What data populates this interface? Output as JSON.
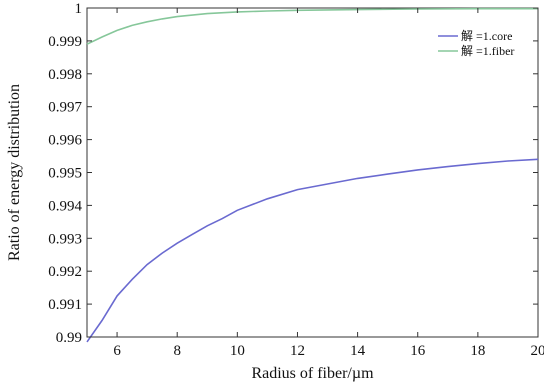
{
  "chart_data": {
    "type": "line",
    "xlabel": "Radius of fiber/µm",
    "ylabel": "Ratio of energy distribution",
    "xlim": [
      5,
      20
    ],
    "ylim": [
      0.99,
      1.0
    ],
    "x_ticks": [
      6,
      8,
      10,
      12,
      14,
      16,
      18,
      20
    ],
    "x_tick_labels": [
      "6",
      "8",
      "10",
      "12",
      "14",
      "16",
      "18",
      "20"
    ],
    "y_ticks": [
      0.99,
      0.991,
      0.992,
      0.993,
      0.994,
      0.995,
      0.996,
      0.997,
      0.998,
      0.999,
      1.0
    ],
    "y_tick_labels": [
      "0.99",
      "0.991",
      "0.992",
      "0.993",
      "0.994",
      "0.995",
      "0.996",
      "0.997",
      "0.998",
      "0.999",
      "1"
    ],
    "grid": false,
    "legend": {
      "position": "top-right"
    },
    "series": [
      {
        "name": "解 =1.core",
        "color": "#6a6ad0",
        "x": [
          5,
          5.5,
          6,
          6.5,
          7,
          7.5,
          8,
          8.5,
          9,
          9.5,
          10,
          11,
          12,
          13,
          14,
          15,
          16,
          17,
          18,
          19,
          20
        ],
        "y": [
          0.98985,
          0.9905,
          0.99125,
          0.99175,
          0.9922,
          0.99255,
          0.99285,
          0.99312,
          0.99338,
          0.9936,
          0.99385,
          0.9942,
          0.99448,
          0.99465,
          0.99482,
          0.99495,
          0.99508,
          0.99518,
          0.99527,
          0.99535,
          0.9954
        ]
      },
      {
        "name": "解 =1.fiber",
        "color": "#86c79a",
        "x": [
          5,
          5.5,
          6,
          6.5,
          7,
          7.5,
          8,
          9,
          10,
          11,
          12,
          14,
          16,
          18,
          20
        ],
        "y": [
          0.9989,
          0.99912,
          0.99932,
          0.99947,
          0.99958,
          0.99967,
          0.99974,
          0.99983,
          0.99988,
          0.99991,
          0.99993,
          0.99995,
          0.99997,
          0.99998,
          0.99998
        ]
      }
    ]
  }
}
